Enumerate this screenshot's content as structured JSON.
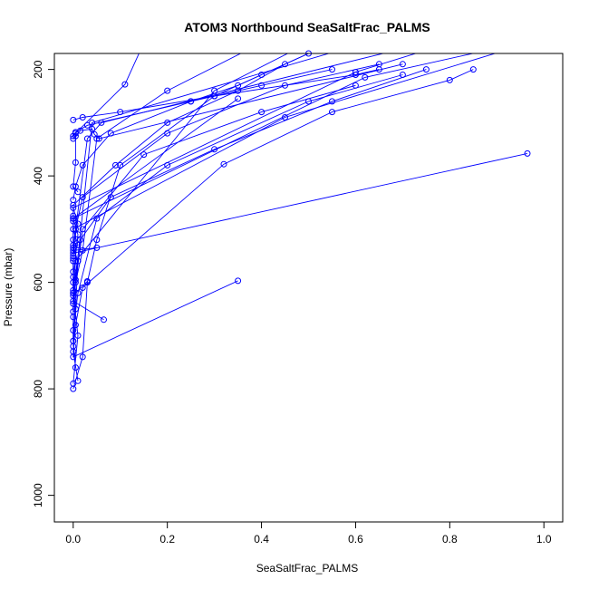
{
  "chart_data": {
    "type": "line",
    "title": "ATOM3 Northbound SeaSaltFrac_PALMS",
    "xlabel": "SeaSaltFrac_PALMS",
    "ylabel": "Pressure (mbar)",
    "xlim": [
      -0.04,
      1.04
    ],
    "ylim": [
      1050,
      170
    ],
    "y_reversed": true,
    "x_ticks": [
      0.0,
      0.2,
      0.4,
      0.6,
      0.8,
      1.0
    ],
    "x_tick_labels": [
      "0.0",
      "0.2",
      "0.4",
      "0.6",
      "0.8",
      "1.0"
    ],
    "y_ticks": [
      200,
      400,
      600,
      800,
      1000
    ],
    "y_tick_labels": [
      "200",
      "400",
      "600",
      "800",
      "1000"
    ],
    "color": "#0000ff",
    "marker": "open-circle",
    "grid": false,
    "legend": "none",
    "series": [
      {
        "points": [
          [
            0.0,
            800
          ],
          [
            0.02,
            740
          ],
          [
            0.03,
            600
          ],
          [
            0.05,
            520
          ],
          [
            0.1,
            380
          ],
          [
            0.3,
            250
          ],
          [
            0.55,
            150
          ]
        ]
      },
      {
        "points": [
          [
            0.0,
            790
          ],
          [
            0.01,
            700
          ],
          [
            0.0,
            620
          ],
          [
            0.02,
            540
          ],
          [
            0.05,
            330
          ],
          [
            0.2,
            240
          ],
          [
            0.4,
            150
          ]
        ]
      },
      {
        "points": [
          [
            0.005,
            760
          ],
          [
            0.0,
            710
          ],
          [
            0.0,
            665
          ],
          [
            0.0,
            580
          ],
          [
            0.0,
            480
          ],
          [
            0.35,
            255
          ]
        ]
      },
      {
        "points": [
          [
            0.01,
            785
          ],
          [
            0.0,
            730
          ],
          [
            0.005,
            680
          ],
          [
            0.02,
            610
          ],
          [
            0.32,
            378
          ],
          [
            0.55,
            280
          ],
          [
            0.8,
            220
          ],
          [
            0.85,
            200
          ]
        ]
      },
      {
        "points": [
          [
            0.0,
            720
          ],
          [
            0.005,
            650
          ],
          [
            0.01,
            560
          ],
          [
            0.0,
            535
          ],
          [
            0.03,
            330
          ],
          [
            0.06,
            300
          ],
          [
            0.75,
            150
          ]
        ]
      },
      {
        "points": [
          [
            0.065,
            670
          ],
          [
            0.0,
            635
          ],
          [
            0.0,
            590
          ],
          [
            0.01,
            510
          ],
          [
            0.0,
            480
          ],
          [
            0.62,
            215
          ],
          [
            0.9,
            160
          ]
        ]
      },
      {
        "points": [
          [
            0.35,
            597
          ],
          [
            0.0,
            740
          ],
          [
            0.005,
            595
          ],
          [
            0.04,
            300
          ],
          [
            0.62,
            150
          ]
        ]
      },
      {
        "points": [
          [
            0.03,
            598
          ],
          [
            0.0,
            625
          ],
          [
            0.0,
            620
          ],
          [
            0.005,
            560
          ],
          [
            0.3,
            240
          ],
          [
            0.5,
            150
          ]
        ]
      },
      {
        "points": [
          [
            0.05,
            535
          ],
          [
            0.0,
            540
          ],
          [
            0.0,
            555
          ],
          [
            0.0,
            530
          ],
          [
            0.01,
            490
          ],
          [
            0.0,
            460
          ],
          [
            0.6,
            205
          ],
          [
            0.8,
            150
          ]
        ]
      },
      {
        "points": [
          [
            0.965,
            358
          ],
          [
            0.0,
            545
          ],
          [
            0.01,
            530
          ],
          [
            0.0,
            500
          ],
          [
            0.45,
            290
          ],
          [
            0.97,
            150
          ]
        ]
      },
      {
        "points": [
          [
            0.01,
            430
          ],
          [
            0.0,
            420
          ],
          [
            0.005,
            375
          ],
          [
            0.005,
            320
          ],
          [
            0.11,
            228
          ],
          [
            0.15,
            150
          ]
        ]
      },
      {
        "points": [
          [
            0.0,
            485
          ],
          [
            0.0,
            455
          ],
          [
            0.09,
            380
          ],
          [
            0.2,
            300
          ],
          [
            0.35,
            240
          ],
          [
            0.45,
            190
          ],
          [
            0.5,
            170
          ]
        ]
      },
      {
        "points": [
          [
            0.0,
            295
          ],
          [
            0.02,
            290
          ],
          [
            0.1,
            280
          ],
          [
            0.3,
            250
          ],
          [
            0.6,
            210
          ],
          [
            0.65,
            200
          ]
        ]
      },
      {
        "points": [
          [
            0.0,
            330
          ],
          [
            0.005,
            325
          ],
          [
            0.015,
            315
          ],
          [
            0.04,
            312
          ],
          [
            0.045,
            322
          ],
          [
            0.055,
            330
          ],
          [
            0.7,
            190
          ]
        ]
      },
      {
        "points": [
          [
            0.0,
            325
          ],
          [
            0.005,
            318
          ],
          [
            0.03,
            305
          ],
          [
            0.25,
            260
          ],
          [
            0.4,
            230
          ],
          [
            0.55,
            200
          ]
        ]
      },
      {
        "points": [
          [
            0.0,
            475
          ],
          [
            0.0,
            520
          ],
          [
            0.0,
            550
          ],
          [
            0.005,
            500
          ],
          [
            0.02,
            440
          ],
          [
            0.2,
            320
          ],
          [
            0.45,
            230
          ],
          [
            0.65,
            190
          ]
        ]
      },
      {
        "points": [
          [
            0.0,
            560
          ],
          [
            0.0,
            600
          ],
          [
            0.0,
            615
          ],
          [
            0.015,
            520
          ],
          [
            0.08,
            440
          ],
          [
            0.3,
            350
          ],
          [
            0.55,
            260
          ],
          [
            0.75,
            200
          ]
        ]
      },
      {
        "points": [
          [
            0.0,
            710
          ],
          [
            0.0,
            690
          ],
          [
            0.01,
            620
          ],
          [
            0.05,
            480
          ],
          [
            0.2,
            380
          ],
          [
            0.5,
            260
          ],
          [
            0.7,
            210
          ]
        ]
      },
      {
        "points": [
          [
            0.0,
            655
          ],
          [
            0.0,
            640
          ],
          [
            0.005,
            600
          ],
          [
            0.02,
            500
          ],
          [
            0.15,
            360
          ],
          [
            0.4,
            280
          ],
          [
            0.6,
            230
          ]
        ]
      },
      {
        "points": [
          [
            0.0,
            445
          ],
          [
            0.005,
            420
          ],
          [
            0.02,
            380
          ],
          [
            0.08,
            320
          ],
          [
            0.25,
            260
          ],
          [
            0.35,
            230
          ],
          [
            0.4,
            210
          ]
        ]
      }
    ]
  }
}
